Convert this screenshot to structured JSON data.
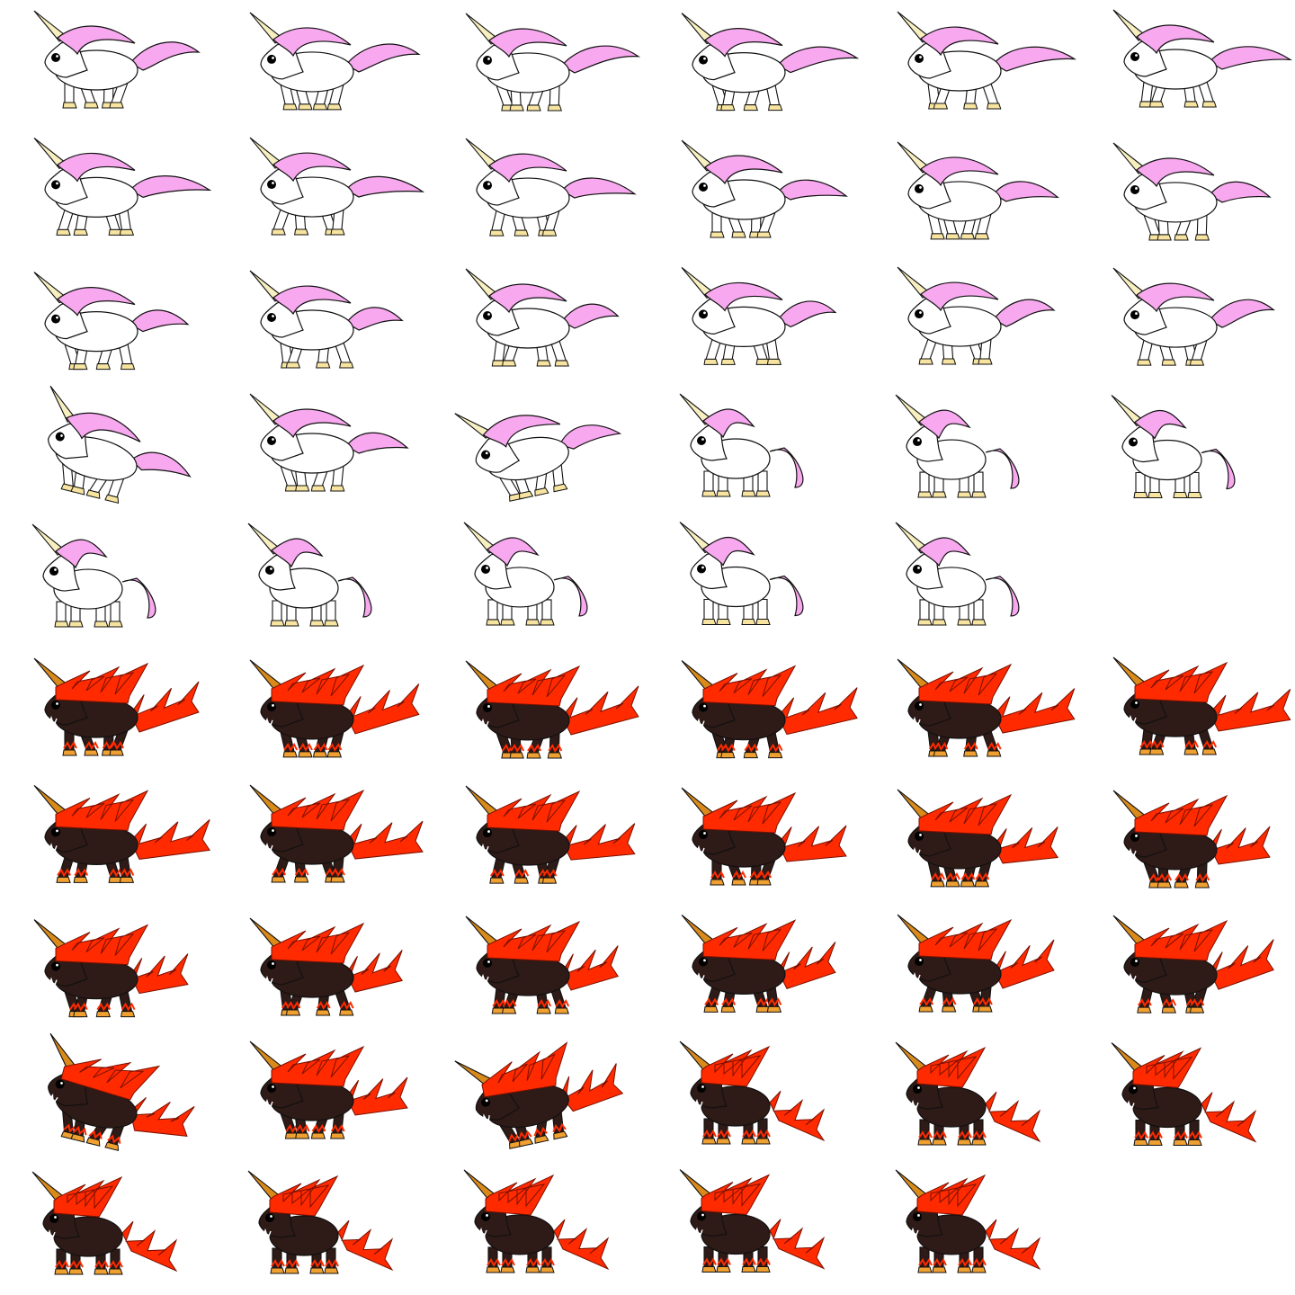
{
  "sheet": {
    "columns": 6,
    "frames_per_block": 29,
    "rows_per_block": 5
  },
  "colors": {
    "background": "#ffffff",
    "outline": "#111111"
  },
  "sprites": [
    {
      "name": "white-unicorn",
      "body": "#ffffff",
      "mane": "#f7a8ee",
      "tail": "#f7a8ee",
      "horn": "#f7efc0",
      "hoof": "#f7e4a0",
      "eye": "#000000",
      "style": "soft"
    },
    {
      "name": "dark-fire-unicorn",
      "body": "#2e1a16",
      "mane": "#ff2a00",
      "tail": "#ff2a00",
      "horn": "#d98a1a",
      "hoof": "#f0a030",
      "eye": "#000000",
      "style": "fire"
    }
  ],
  "animations": [
    {
      "name": "run",
      "frames": 18
    },
    {
      "name": "jump",
      "frames": 3
    },
    {
      "name": "idle",
      "frames": 8
    }
  ]
}
